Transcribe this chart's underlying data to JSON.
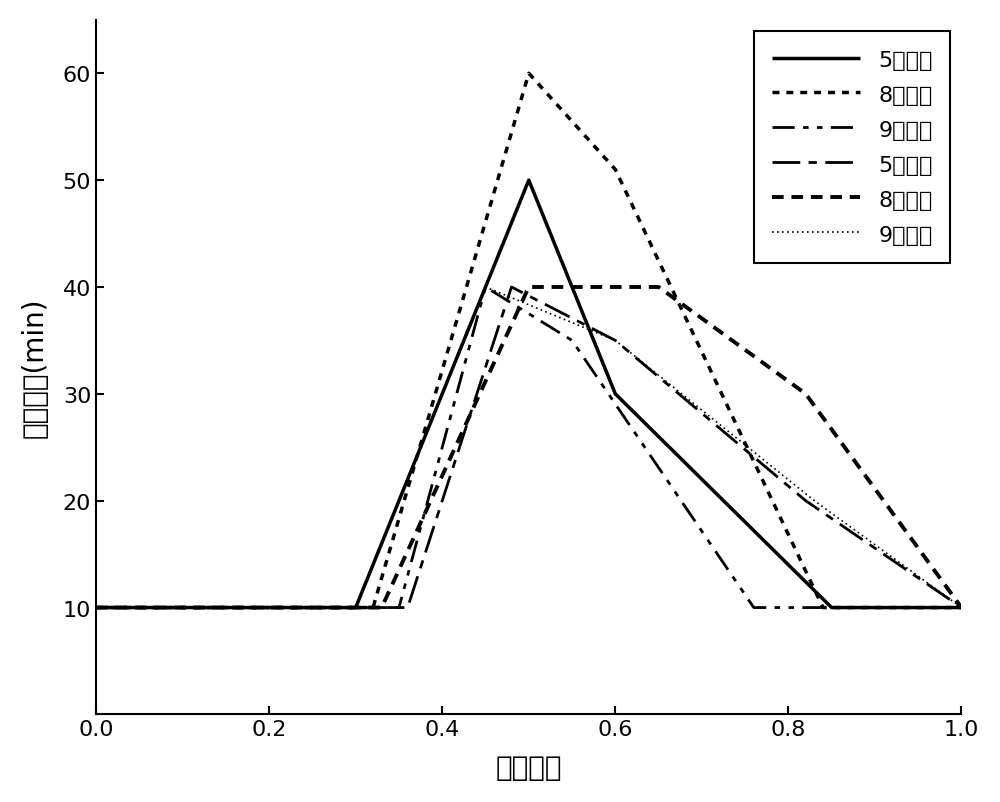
{
  "title": "",
  "xlabel": "荷电状态",
  "ylabel": "静置时间(min)",
  "xlim": [
    0.0,
    1.0
  ],
  "ylim": [
    0,
    65
  ],
  "yticks": [
    10,
    20,
    30,
    40,
    50,
    60
  ],
  "xticks": [
    0.0,
    0.2,
    0.4,
    0.6,
    0.8,
    1.0
  ],
  "background_color": "#ffffff",
  "plot_data": {
    "5号初始": {
      "x": [
        0.0,
        0.3,
        0.5,
        0.6,
        0.85,
        1.0
      ],
      "y": [
        10,
        10,
        50,
        30,
        10,
        10
      ],
      "linewidth": 2.5,
      "linestyle": "solid"
    },
    "8号初始": {
      "x": [
        0.0,
        0.32,
        0.5,
        0.6,
        0.84,
        1.0
      ],
      "y": [
        10,
        10,
        60,
        51,
        10,
        10
      ],
      "linewidth": 2.5,
      "linestyle": "densely_dotted"
    },
    "9号初始": {
      "x": [
        0.0,
        0.35,
        0.45,
        0.55,
        0.76,
        1.0
      ],
      "y": [
        10,
        10,
        40,
        35,
        10,
        10
      ],
      "linewidth": 2.0,
      "linestyle": "dashdotdot"
    },
    "5号老化": {
      "x": [
        0.0,
        0.36,
        0.48,
        0.6,
        0.82,
        1.0
      ],
      "y": [
        10,
        10,
        40,
        35,
        20,
        10
      ],
      "linewidth": 2.0,
      "linestyle": "dashdot_long"
    },
    "8号老化": {
      "x": [
        0.0,
        0.33,
        0.5,
        0.65,
        0.82,
        1.0
      ],
      "y": [
        10,
        10,
        40,
        40,
        30,
        10
      ],
      "linewidth": 2.8,
      "linestyle": "loosely_dotted"
    },
    "9号老化": {
      "x": [
        0.0,
        0.3,
        0.45,
        0.6,
        0.83,
        1.0
      ],
      "y": [
        10,
        10,
        40,
        35,
        20,
        10
      ],
      "linewidth": 1.2,
      "linestyle": "very_fine_dotted"
    }
  },
  "legend_labels": [
    "5号初始",
    "8号初始",
    "9号初始",
    "5号老化",
    "8号老化",
    "9号老化"
  ]
}
